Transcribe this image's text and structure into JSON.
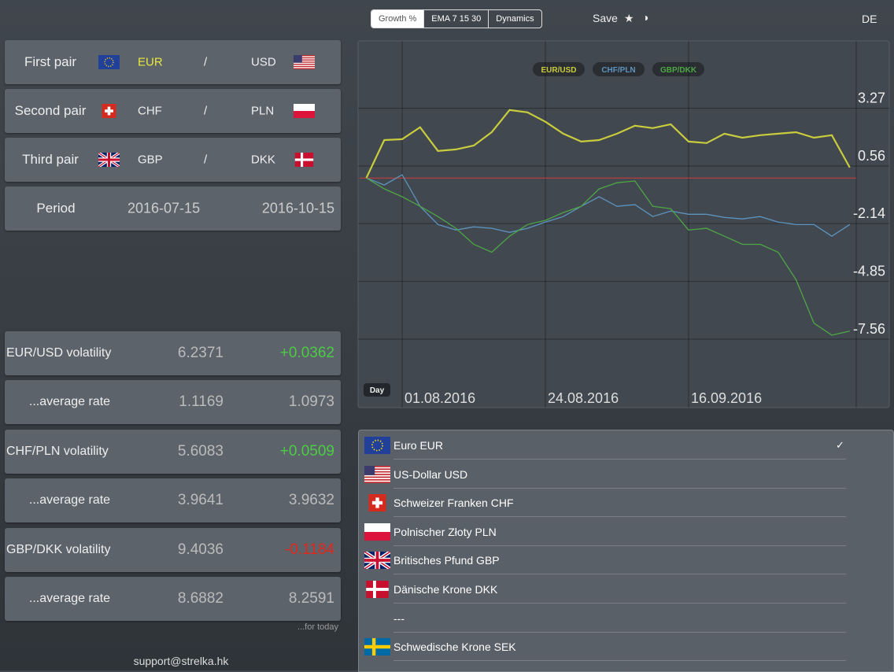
{
  "toolbar": {
    "tabs": [
      "Growth %",
      "EMA 7 15 30",
      "Dynamics"
    ],
    "save": "Save",
    "star": "★",
    "contrast": "◑",
    "language": "DE"
  },
  "pairs": [
    {
      "label": "First pair",
      "base": "EUR",
      "separator": "/",
      "quote": "USD"
    },
    {
      "label": "Second pair",
      "base": "CHF",
      "separator": "/",
      "quote": "PLN"
    },
    {
      "label": "Third pair",
      "base": "GBP",
      "separator": "/",
      "quote": "DKK"
    }
  ],
  "period": {
    "label": "Period",
    "start": "2016-07-15",
    "end": "2016-10-15"
  },
  "stats": [
    {
      "label": "EUR/USD volatility",
      "value": "6.2371",
      "change": "+0.0362"
    },
    {
      "label": "...average rate",
      "value": "1.1169",
      "change": "1.0973"
    },
    {
      "label": "CHF/PLN volatility",
      "value": "5.6083",
      "change": "+0.0509"
    },
    {
      "label": "...average rate",
      "value": "3.9641",
      "change": "3.9632"
    },
    {
      "label": "GBP/DKK volatility",
      "value": "9.4036",
      "change": "-0.1184"
    },
    {
      "label": "...average rate",
      "value": "8.6882",
      "change": "8.2591"
    }
  ],
  "note": "...for today",
  "support": "support@strelka.hk",
  "chart_data": {
    "type": "line",
    "granularity": "Day",
    "categories": [
      null,
      null,
      "01.08.2016",
      null,
      null,
      null,
      null,
      null,
      null,
      null,
      "24.08.2016",
      null,
      null,
      null,
      null,
      null,
      null,
      null,
      "16.09.2016",
      null,
      null,
      null,
      null,
      null,
      null,
      null,
      null,
      null
    ],
    "series": [
      {
        "name": "EUR/USD",
        "color": "#c9cc3c",
        "values": [
          0,
          1.78,
          1.82,
          2.38,
          1.27,
          1.34,
          1.52,
          2.15,
          3.19,
          3.08,
          2.64,
          2.08,
          1.71,
          1.78,
          2.08,
          2.45,
          2.34,
          2.52,
          1.71,
          1.64,
          2.08,
          1.89,
          2.01,
          2.08,
          2.15,
          1.89,
          2.01,
          0.49
        ]
      },
      {
        "name": "CHF/PLN",
        "color": "#5d93bd",
        "values": [
          0,
          -0.33,
          0.15,
          -1.33,
          -2.18,
          -2.44,
          -2.29,
          -2.36,
          -2.55,
          -2.36,
          -2.07,
          -1.81,
          -1.33,
          -0.88,
          -1.33,
          -1.25,
          -1.81,
          -1.55,
          -1.7,
          -1.7,
          -1.85,
          -1.92,
          -1.81,
          -2.07,
          -2.18,
          -2.18,
          -2.73,
          -2.18
        ]
      },
      {
        "name": "GBP/DKK",
        "color": "#4ea645",
        "values": [
          0,
          -0.51,
          -0.88,
          -1.33,
          -1.81,
          -2.36,
          -3.11,
          -3.48,
          -2.73,
          -2.18,
          -1.99,
          -1.62,
          -1.33,
          -0.51,
          -0.22,
          -0.14,
          -1.33,
          -1.44,
          -2.44,
          -2.36,
          -2.73,
          -3.11,
          -3.11,
          -3.48,
          -4.77,
          -6.81,
          -7.37,
          -7.18
        ]
      }
    ],
    "baseline": 0,
    "baseline_color": "#d23a3a",
    "ylim": [
      -10.77,
      6.43
    ],
    "yticks": [
      3.27,
      0.56,
      -2.14,
      -4.85,
      -7.56
    ],
    "grid": true
  },
  "currency_list": {
    "selected_mark": "✓",
    "items": [
      "Euro EUR",
      "US-Dollar USD",
      "Schweizer Franken CHF",
      "Polnischer Złoty PLN",
      "Britisches Pfund GBP",
      "Dänische Krone DKK",
      "---",
      "Schwedische Krone SEK"
    ]
  }
}
